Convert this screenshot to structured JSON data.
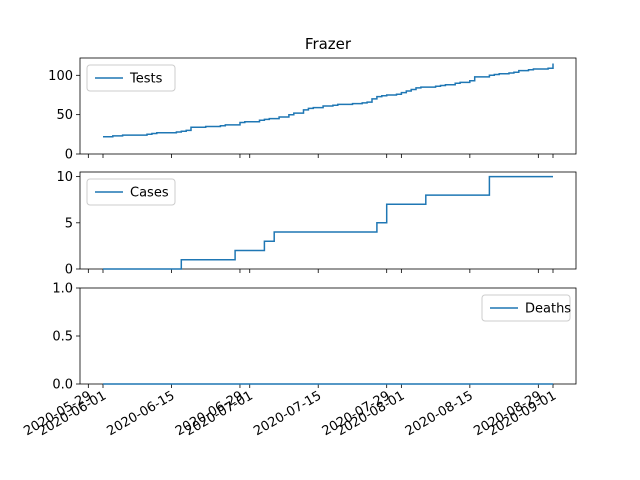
{
  "chart_data": {
    "title": "Frazer",
    "x_ticks": [
      "2020-05-29",
      "2020-06-01",
      "2020-06-15",
      "2020-06-29",
      "2020-07-01",
      "2020-07-15",
      "2020-07-29",
      "2020-08-01",
      "2020-08-15",
      "2020-08-29",
      "2020-09-01"
    ],
    "subplots": [
      {
        "type": "line",
        "legend_placement": "upper-left",
        "series": [
          {
            "name": "Tests",
            "color": "#1f77b4",
            "x": [
              "2020-06-01",
              "2020-06-02",
              "2020-06-03",
              "2020-06-05",
              "2020-06-08",
              "2020-06-10",
              "2020-06-11",
              "2020-06-12",
              "2020-06-15",
              "2020-06-16",
              "2020-06-17",
              "2020-06-18",
              "2020-06-19",
              "2020-06-22",
              "2020-06-25",
              "2020-06-26",
              "2020-06-29",
              "2020-06-30",
              "2020-07-03",
              "2020-07-04",
              "2020-07-05",
              "2020-07-06",
              "2020-07-07",
              "2020-07-09",
              "2020-07-10",
              "2020-07-12",
              "2020-07-13",
              "2020-07-14",
              "2020-07-16",
              "2020-07-18",
              "2020-07-19",
              "2020-07-22",
              "2020-07-23",
              "2020-07-24",
              "2020-07-25",
              "2020-07-26",
              "2020-07-27",
              "2020-07-28",
              "2020-07-29",
              "2020-07-31",
              "2020-08-01",
              "2020-08-02",
              "2020-08-03",
              "2020-08-04",
              "2020-08-05",
              "2020-08-07",
              "2020-08-08",
              "2020-08-09",
              "2020-08-10",
              "2020-08-12",
              "2020-08-13",
              "2020-08-15",
              "2020-08-16",
              "2020-08-19",
              "2020-08-20",
              "2020-08-21",
              "2020-08-23",
              "2020-08-24",
              "2020-08-25",
              "2020-08-27",
              "2020-08-28",
              "2020-08-30",
              "2020-08-31",
              "2020-09-01"
            ],
            "y": [
              22,
              22,
              23,
              24,
              24,
              25,
              26,
              27,
              27,
              28,
              29,
              30,
              34,
              35,
              36,
              37,
              40,
              41,
              43,
              44,
              45,
              45,
              47,
              50,
              52,
              56,
              58,
              59,
              61,
              62,
              63,
              64,
              64,
              65,
              66,
              70,
              73,
              74,
              75,
              76,
              78,
              80,
              82,
              84,
              85,
              85,
              86,
              87,
              88,
              90,
              91,
              93,
              98,
              100,
              101,
              102,
              103,
              104,
              106,
              107,
              108,
              108,
              109,
              115
            ]
          }
        ],
        "ylim": [
          0,
          122
        ],
        "y_ticks": [
          0,
          50,
          100
        ]
      },
      {
        "type": "line",
        "legend_placement": "upper-left",
        "series": [
          {
            "name": "Cases",
            "color": "#1f77b4",
            "x": [
              "2020-06-01",
              "2020-06-16",
              "2020-06-17",
              "2020-06-27",
              "2020-06-28",
              "2020-07-03",
              "2020-07-04",
              "2020-07-05",
              "2020-07-06",
              "2020-07-17",
              "2020-07-18",
              "2020-07-19",
              "2020-07-20",
              "2020-07-26",
              "2020-07-27",
              "2020-07-28",
              "2020-07-29",
              "2020-08-05",
              "2020-08-06",
              "2020-08-18",
              "2020-08-19",
              "2020-09-01"
            ],
            "y": [
              0,
              0,
              1,
              1,
              2,
              2,
              3,
              3,
              4,
              4,
              4,
              4,
              4,
              4,
              5,
              5,
              7,
              7,
              8,
              8,
              10,
              10
            ]
          }
        ],
        "ylim": [
          0,
          10.5
        ],
        "y_ticks": [
          0,
          5,
          10
        ]
      },
      {
        "type": "line",
        "legend_placement": "upper-right",
        "series": [
          {
            "name": "Deaths",
            "color": "#1f77b4",
            "x": [
              "2020-06-01",
              "2020-09-01"
            ],
            "y": [
              0,
              0
            ]
          }
        ],
        "ylim": [
          0,
          1.0
        ],
        "y_ticks": [
          0.0,
          0.5,
          1.0
        ]
      }
    ]
  }
}
